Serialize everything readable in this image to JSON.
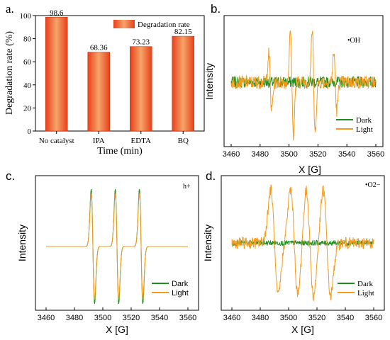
{
  "colors": {
    "bar_dark": "#e8401a",
    "bar_light": "#f5a46a",
    "dark_series": "#1e8c1e",
    "light_series": "#f59a1b"
  },
  "chart_data": [
    {
      "panel": "a.",
      "type": "bar",
      "categories": [
        "No catalyst",
        "IPA",
        "EDTA",
        "BQ"
      ],
      "values": [
        98.6,
        68.36,
        73.23,
        82.15
      ],
      "value_labels": [
        "98.6",
        "68.36",
        "73.23",
        "82.15"
      ],
      "series_name": "Degradation rate",
      "xlabel": "Time (min)",
      "ylabel": "Degradation rate (%)",
      "ylim": [
        0,
        100
      ],
      "yticks": [
        "0",
        "20",
        "40",
        "60",
        "80",
        "100"
      ],
      "legend_position": "top-right",
      "grid": false
    },
    {
      "panel": "b.",
      "type": "line",
      "annotation": "•OH",
      "xlabel": "X [G]",
      "ylabel": "Intensity",
      "xlim": [
        3460,
        3560
      ],
      "xticks": [
        "3460",
        "3480",
        "3500",
        "3520",
        "3540",
        "3560"
      ],
      "series_names": [
        "Dark",
        "Light"
      ],
      "peak_centers": [
        3487,
        3502,
        3517,
        3532
      ],
      "peak_amplitudes": [
        0.55,
        1.0,
        1.0,
        0.55
      ],
      "legend_position": "bottom-right",
      "grid": false
    },
    {
      "panel": "c.",
      "type": "line",
      "annotation": "h+",
      "xlabel": "X [G]",
      "ylabel": "Intensity",
      "xlim": [
        3460,
        3560
      ],
      "xticks": [
        "3460",
        "3480",
        "3500",
        "3520",
        "3540",
        "3560"
      ],
      "series_names": [
        "Dark",
        "Light"
      ],
      "peak_centers": [
        3493,
        3510,
        3527
      ],
      "peak_amplitudes": [
        1.0,
        1.0,
        1.0
      ],
      "legend_position": "bottom-right",
      "grid": false
    },
    {
      "panel": "d.",
      "type": "line",
      "annotation": "•O2−",
      "xlabel": "X [G]",
      "ylabel": "Intensity",
      "xlim": [
        3460,
        3560
      ],
      "xticks": [
        "3460",
        "3480",
        "3500",
        "3520",
        "3540",
        "3560"
      ],
      "series_names": [
        "Dark",
        "Light"
      ],
      "peak_centers": [
        3490,
        3504,
        3515,
        3527
      ],
      "peak_amplitudes": [
        1.0,
        1.0,
        1.0,
        1.0
      ],
      "legend_position": "bottom-right",
      "grid": false
    }
  ]
}
